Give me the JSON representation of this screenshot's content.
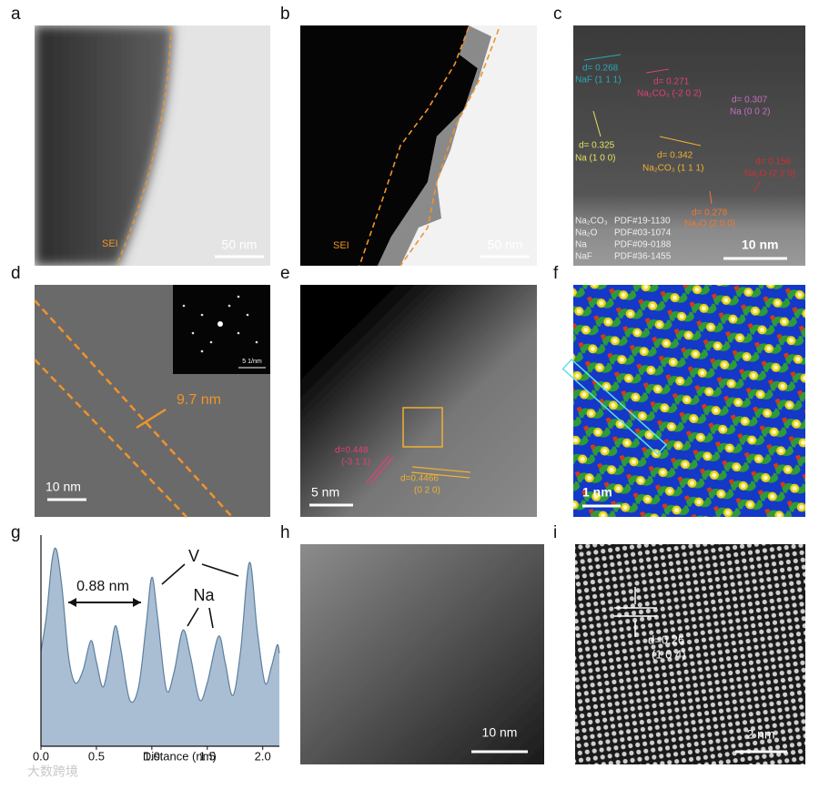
{
  "panels": {
    "a": {
      "label": "a",
      "sei": "SEI",
      "scale": "50 nm"
    },
    "b": {
      "label": "b",
      "sei": "SEI",
      "scale": "50 nm"
    },
    "c": {
      "label": "c",
      "annotations": [
        {
          "d": "d= 0.268",
          "plane": "NaF (1 1 1)"
        },
        {
          "d": "d= 0.271",
          "plane": "Na₂CO₃ (-2 0 2)"
        },
        {
          "d": "d= 0.307",
          "plane": "Na (0 0 2)"
        },
        {
          "d": "d= 0.325",
          "plane": "Na (1 0 0)"
        },
        {
          "d": "d= 0.342",
          "plane": "Na₂CO₃ (1 1 1)"
        },
        {
          "d": "d= 0.156",
          "plane": "Na₂O (2 2 0)"
        },
        {
          "d": "d= 0.278",
          "plane": "Na₂O (2 0 0)"
        }
      ],
      "legend": [
        [
          "Na₂CO₃",
          "PDF#19-1130"
        ],
        [
          "Na₂O",
          "PDF#03-1074"
        ],
        [
          "Na",
          "PDF#09-0188"
        ],
        [
          "NaF",
          "PDF#36-1455"
        ]
      ],
      "scale": "10 nm"
    },
    "d": {
      "label": "d",
      "thickness": "9.7 nm",
      "scale": "10 nm",
      "inset_scale": "5 1/nm"
    },
    "e": {
      "label": "e",
      "annotations": [
        {
          "d": "d=0.448",
          "plane": "(-3 1 1)"
        },
        {
          "d": "d=0.4466",
          "plane": "(0 2 0)"
        }
      ],
      "scale": "5 nm"
    },
    "f": {
      "label": "f",
      "scale": "1 nm"
    },
    "g": {
      "label": "g",
      "chart": {
        "type": "area",
        "color": "#a9bed3",
        "line_color": "#5d7f9e",
        "x": [
          0,
          0.05,
          0.1,
          0.14,
          0.19,
          0.25,
          0.31,
          0.38,
          0.45,
          0.5,
          0.56,
          0.62,
          0.67,
          0.72,
          0.8,
          0.88,
          0.95,
          1.0,
          1.05,
          1.13,
          1.2,
          1.28,
          1.35,
          1.43,
          1.5,
          1.6,
          1.66,
          1.73,
          1.8,
          1.88,
          1.95,
          2.02,
          2.08,
          2.13,
          2.15
        ],
        "values": [
          0.45,
          0.62,
          0.88,
          0.93,
          0.75,
          0.42,
          0.3,
          0.36,
          0.5,
          0.4,
          0.28,
          0.42,
          0.57,
          0.46,
          0.22,
          0.28,
          0.58,
          0.8,
          0.62,
          0.27,
          0.35,
          0.55,
          0.42,
          0.22,
          0.3,
          0.52,
          0.4,
          0.24,
          0.45,
          0.87,
          0.55,
          0.3,
          0.38,
          0.48,
          0.44
        ],
        "xlim": [
          0,
          2.15
        ],
        "ylim": [
          0,
          1
        ],
        "xticks": [
          {
            "value": 0,
            "label": "0.0"
          },
          0.5,
          {
            "value": 1,
            "label": "1.0"
          },
          1.5,
          {
            "value": 2,
            "label": "2.0"
          }
        ],
        "xlabel": "Distance (nm)",
        "spacing": "0.88 nm",
        "peak_v": "V",
        "peak_na": "Na"
      }
    },
    "h": {
      "label": "h",
      "scale": "10 nm"
    },
    "i": {
      "label": "i",
      "d": "d=0.26",
      "plane": "(1 0 4)",
      "scale": "2 nm"
    }
  },
  "watermark": "大数跨境"
}
